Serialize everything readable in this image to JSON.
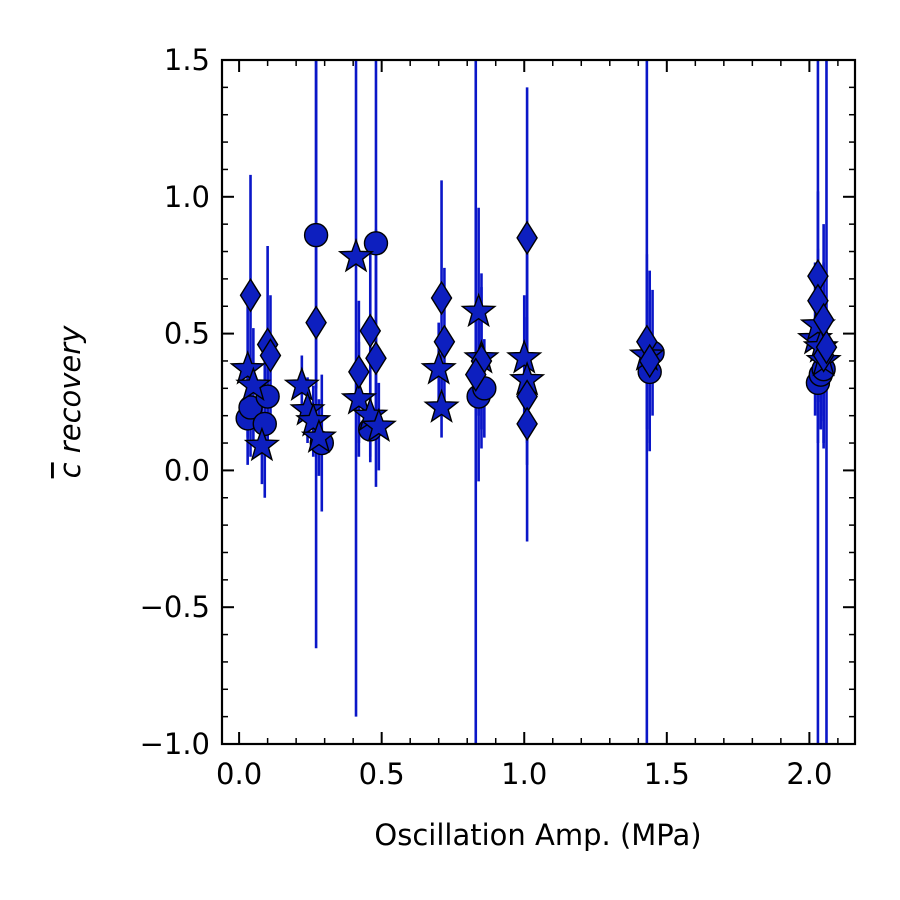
{
  "chart_data": {
    "type": "scatter",
    "title": "",
    "xlabel": "Oscillation Amp. (MPa)",
    "ylabel_bar": "c",
    "ylabel_rest": " recovery",
    "xlim": [
      -0.06,
      2.16
    ],
    "ylim": [
      -1.0,
      1.5
    ],
    "x_ticks": [
      0.0,
      0.5,
      1.0,
      1.5,
      2.0
    ],
    "x_tick_labels": [
      "0.0",
      "0.5",
      "1.0",
      "1.5",
      "2.0"
    ],
    "y_ticks": [
      -1.0,
      -0.5,
      0.0,
      0.5,
      1.0,
      1.5
    ],
    "y_tick_labels": [
      "−1.0",
      "−0.5",
      "0.0",
      "0.5",
      "1.0",
      "1.5"
    ],
    "grid": false,
    "legend": "none",
    "colors": {
      "fill": "#0d1fbf",
      "marker_edge": "#000000",
      "errorbar": "#0a16c8"
    },
    "series": [
      {
        "marker": "circle",
        "points": [
          {
            "x": 0.03,
            "y": 0.19,
            "lo": 0.02,
            "hi": 0.36
          },
          {
            "x": 0.04,
            "y": 0.23,
            "lo": 0.05,
            "hi": 0.41
          },
          {
            "x": 0.09,
            "y": 0.17,
            "lo": -0.1,
            "hi": 0.44
          },
          {
            "x": 0.1,
            "y": 0.27,
            "lo": 0.1,
            "hi": 0.44
          },
          {
            "x": 0.27,
            "y": 0.86,
            "lo": 0.3,
            "hi": 1.5
          },
          {
            "x": 0.29,
            "y": 0.1,
            "lo": -0.15,
            "hi": 0.35
          },
          {
            "x": 0.46,
            "y": 0.15,
            "lo": 0.03,
            "hi": 0.27
          },
          {
            "x": 0.48,
            "y": 0.83,
            "lo": 0.2,
            "hi": 1.5
          },
          {
            "x": 0.84,
            "y": 0.27,
            "lo": -0.04,
            "hi": 0.58
          },
          {
            "x": 0.86,
            "y": 0.3,
            "lo": 0.12,
            "hi": 0.48
          },
          {
            "x": 1.44,
            "y": 0.36,
            "lo": 0.1,
            "hi": 0.62
          },
          {
            "x": 1.45,
            "y": 0.43,
            "lo": 0.2,
            "hi": 0.66
          },
          {
            "x": 2.03,
            "y": 0.32,
            "lo": 0.1,
            "hi": 0.54
          },
          {
            "x": 2.04,
            "y": 0.35,
            "lo": 0.15,
            "hi": 0.55
          },
          {
            "x": 2.05,
            "y": 0.37,
            "lo": 0.18,
            "hi": 0.56
          }
        ]
      },
      {
        "marker": "star",
        "points": [
          {
            "x": 0.03,
            "y": 0.37,
            "lo": 0.12,
            "hi": 0.62
          },
          {
            "x": 0.05,
            "y": 0.31,
            "lo": 0.1,
            "hi": 0.52
          },
          {
            "x": 0.08,
            "y": 0.09,
            "lo": -0.05,
            "hi": 0.23
          },
          {
            "x": 0.22,
            "y": 0.31,
            "lo": 0.18,
            "hi": 0.42
          },
          {
            "x": 0.24,
            "y": 0.22,
            "lo": 0.1,
            "hi": 0.34
          },
          {
            "x": 0.26,
            "y": 0.18,
            "lo": 0.05,
            "hi": 0.31
          },
          {
            "x": 0.28,
            "y": 0.12,
            "lo": -0.02,
            "hi": 0.26
          },
          {
            "x": 0.41,
            "y": 0.78,
            "lo": -0.9,
            "hi": 1.5
          },
          {
            "x": 0.42,
            "y": 0.26,
            "lo": 0.05,
            "hi": 0.47
          },
          {
            "x": 0.46,
            "y": 0.2,
            "lo": 0.05,
            "hi": 0.35
          },
          {
            "x": 0.49,
            "y": 0.16,
            "lo": 0.0,
            "hi": 0.32
          },
          {
            "x": 0.7,
            "y": 0.37,
            "lo": 0.2,
            "hi": 0.54
          },
          {
            "x": 0.71,
            "y": 0.23,
            "lo": 0.12,
            "hi": 0.34
          },
          {
            "x": 0.84,
            "y": 0.58,
            "lo": 0.2,
            "hi": 0.96
          },
          {
            "x": 0.85,
            "y": 0.41,
            "lo": 0.15,
            "hi": 0.67
          },
          {
            "x": 1.0,
            "y": 0.41,
            "lo": 0.18,
            "hi": 0.64
          },
          {
            "x": 1.01,
            "y": 0.33,
            "lo": 0.1,
            "hi": 0.56
          },
          {
            "x": 1.43,
            "y": 0.42,
            "lo": -1.0,
            "hi": 1.5
          },
          {
            "x": 2.02,
            "y": 0.48,
            "lo": 0.2,
            "hi": 0.76
          },
          {
            "x": 2.03,
            "y": 0.53,
            "lo": 0.25,
            "hi": 0.81
          },
          {
            "x": 2.04,
            "y": 0.45,
            "lo": 0.15,
            "hi": 0.75
          },
          {
            "x": 2.05,
            "y": 0.4,
            "lo": 0.1,
            "hi": 0.7
          }
        ]
      },
      {
        "marker": "diamond",
        "points": [
          {
            "x": 0.04,
            "y": 0.64,
            "lo": 0.2,
            "hi": 1.08
          },
          {
            "x": 0.1,
            "y": 0.46,
            "lo": 0.1,
            "hi": 0.82
          },
          {
            "x": 0.11,
            "y": 0.42,
            "lo": 0.2,
            "hi": 0.64
          },
          {
            "x": 0.27,
            "y": 0.54,
            "lo": -0.65,
            "hi": 1.5
          },
          {
            "x": 0.42,
            "y": 0.36,
            "lo": 0.1,
            "hi": 0.62
          },
          {
            "x": 0.46,
            "y": 0.51,
            "lo": 0.2,
            "hi": 0.82
          },
          {
            "x": 0.48,
            "y": 0.41,
            "lo": -0.06,
            "hi": 0.88
          },
          {
            "x": 0.71,
            "y": 0.63,
            "lo": 0.2,
            "hi": 1.06
          },
          {
            "x": 0.72,
            "y": 0.47,
            "lo": 0.2,
            "hi": 0.74
          },
          {
            "x": 0.85,
            "y": 0.4,
            "lo": 0.08,
            "hi": 0.72
          },
          {
            "x": 0.83,
            "y": 0.35,
            "lo": -1.0,
            "hi": 1.5
          },
          {
            "x": 1.01,
            "y": 0.85,
            "lo": 0.3,
            "hi": 1.4
          },
          {
            "x": 1.01,
            "y": 0.27,
            "lo": -0.26,
            "hi": 0.8
          },
          {
            "x": 1.01,
            "y": 0.17,
            "lo": 0.02,
            "hi": 0.32
          },
          {
            "x": 1.43,
            "y": 0.47,
            "lo": 0.15,
            "hi": 0.79
          },
          {
            "x": 1.44,
            "y": 0.4,
            "lo": 0.07,
            "hi": 0.73
          },
          {
            "x": 2.03,
            "y": 0.71,
            "lo": 0.4,
            "hi": 1.02
          },
          {
            "x": 2.03,
            "y": 0.62,
            "lo": -1.0,
            "hi": 1.5
          },
          {
            "x": 2.05,
            "y": 0.55,
            "lo": 0.2,
            "hi": 0.9
          },
          {
            "x": 2.05,
            "y": 0.42,
            "lo": 0.08,
            "hi": 0.76
          },
          {
            "x": 2.06,
            "y": 0.45,
            "lo": -1.0,
            "hi": 1.5
          }
        ]
      }
    ]
  }
}
